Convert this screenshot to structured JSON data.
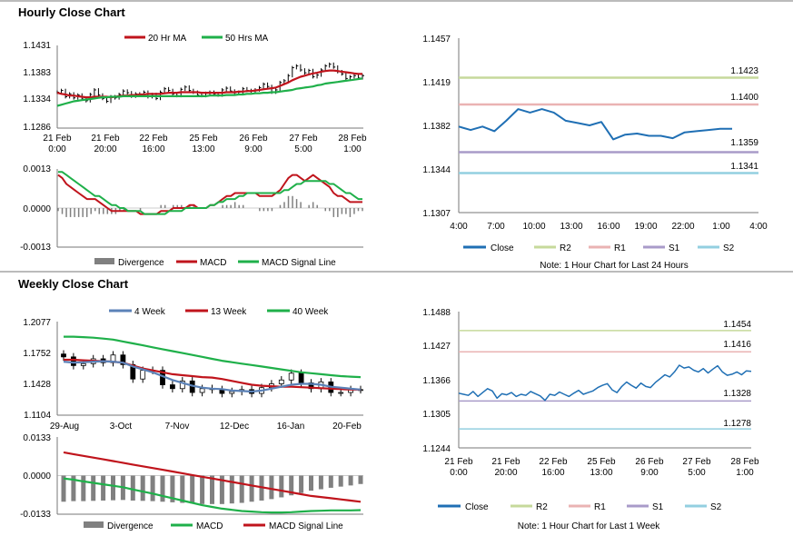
{
  "sections": {
    "hourly_title": "Hourly Close Chart",
    "weekly_title": "Weekly Close Chart"
  },
  "colors": {
    "ma20": "#c0141c",
    "ma50": "#1fb04a",
    "price": "#000000",
    "close": "#1f6fb4",
    "r2": "#c6d99b",
    "r1": "#eab3b3",
    "s1": "#a99bc9",
    "s2": "#93cfe0",
    "hist": "#808080",
    "w4": "#5b82b8"
  },
  "chart_data": [
    {
      "id": "hourly_price",
      "type": "line",
      "title": "Hourly Close Chart",
      "legend": [
        "20 Hr MA",
        "50 Hrs MA"
      ],
      "yticks": [
        "1.1431",
        "1.1383",
        "1.1334",
        "1.1286"
      ],
      "ylim": [
        1.1286,
        1.1431
      ],
      "xticks": [
        [
          "21 Feb",
          "0:00"
        ],
        [
          "21 Feb",
          "20:00"
        ],
        [
          "22 Feb",
          "16:00"
        ],
        [
          "25 Feb",
          "13:00"
        ],
        [
          "26 Feb",
          "9:00"
        ],
        [
          "27 Feb",
          "5:00"
        ],
        [
          "28 Feb",
          "1:00"
        ]
      ],
      "price": [
        1.1349,
        1.1352,
        1.1341,
        1.1346,
        1.1339,
        1.1344,
        1.1337,
        1.1334,
        1.1345,
        1.1353,
        1.1344,
        1.1338,
        1.1333,
        1.1341,
        1.1339,
        1.1345,
        1.1351,
        1.1348,
        1.1342,
        1.1346,
        1.1344,
        1.1349,
        1.1341,
        1.1345,
        1.1338,
        1.1349,
        1.1355,
        1.1352,
        1.1346,
        1.1343,
        1.1354,
        1.1358,
        1.1352,
        1.1349,
        1.1344,
        1.1343,
        1.1347,
        1.1349,
        1.1346,
        1.1344,
        1.1353,
        1.1356,
        1.1351,
        1.1348,
        1.1349,
        1.1355,
        1.1352,
        1.1351,
        1.1353,
        1.1357,
        1.1363,
        1.1359,
        1.1349,
        1.1353,
        1.1366,
        1.1369,
        1.1378,
        1.1392,
        1.1395,
        1.1388,
        1.1383,
        1.1387,
        1.1376,
        1.1379,
        1.1388,
        1.1395,
        1.1398,
        1.1393,
        1.1385,
        1.1381,
        1.1373,
        1.1376,
        1.1378,
        1.1374,
        1.1378
      ],
      "ma20": [
        1.1348,
        1.1346,
        1.1345,
        1.1343,
        1.1343,
        1.1342,
        1.1341,
        1.134,
        1.134,
        1.1341,
        1.1341,
        1.1341,
        1.1341,
        1.134,
        1.1341,
        1.1342,
        1.1343,
        1.1343,
        1.1344,
        1.1344,
        1.1345,
        1.1345,
        1.1346,
        1.1346,
        1.1346,
        1.1346,
        1.1347,
        1.1348,
        1.1348,
        1.1348,
        1.1349,
        1.1349,
        1.1349,
        1.1349,
        1.1349,
        1.1348,
        1.1348,
        1.1348,
        1.1348,
        1.1348,
        1.1348,
        1.1349,
        1.1349,
        1.1349,
        1.135,
        1.135,
        1.1351,
        1.1351,
        1.1352,
        1.1353,
        1.1354,
        1.1355,
        1.1356,
        1.1357,
        1.136,
        1.1363,
        1.1366,
        1.137,
        1.1373,
        1.1376,
        1.1378,
        1.138,
        1.1382,
        1.1383,
        1.1385,
        1.1386,
        1.1387,
        1.1387,
        1.1386,
        1.1385,
        1.1384,
        1.1383,
        1.1382,
        1.1381,
        1.1381
      ],
      "ma50": [
        1.1325,
        1.1327,
        1.1329,
        1.1331,
        1.1333,
        1.1334,
        1.1335,
        1.1336,
        1.1337,
        1.1338,
        1.1339,
        1.134,
        1.134,
        1.1341,
        1.1341,
        1.1341,
        1.1342,
        1.1342,
        1.1342,
        1.1342,
        1.1342,
        1.1342,
        1.1342,
        1.1342,
        1.1342,
        1.1342,
        1.1342,
        1.1342,
        1.1342,
        1.1342,
        1.1342,
        1.1342,
        1.1342,
        1.1342,
        1.1342,
        1.1342,
        1.1342,
        1.1343,
        1.1343,
        1.1343,
        1.1343,
        1.1344,
        1.1344,
        1.1344,
        1.1345,
        1.1345,
        1.1346,
        1.1346,
        1.1347,
        1.1347,
        1.1348,
        1.1348,
        1.1349,
        1.1349,
        1.135,
        1.1351,
        1.1352,
        1.1353,
        1.1355,
        1.1356,
        1.1357,
        1.1358,
        1.1359,
        1.1361,
        1.1362,
        1.1364,
        1.1365,
        1.1366,
        1.1367,
        1.1368,
        1.1369,
        1.137,
        1.1371,
        1.1372,
        1.1373
      ]
    },
    {
      "id": "hourly_macd",
      "type": "line",
      "legend": [
        "Divergence",
        "MACD",
        "MACD Signal Line"
      ],
      "yticks": [
        "0.0013",
        "0.0000",
        "-0.0013"
      ],
      "ylim": [
        -0.0013,
        0.0013
      ],
      "macd": [
        0.0011,
        0.001,
        0.0008,
        0.0007,
        0.0006,
        0.0005,
        0.0004,
        0.0003,
        0.0003,
        0.0003,
        0.0002,
        0.0001,
        0.0,
        -0.0001,
        -0.0001,
        -0.0001,
        -0.0001,
        -0.0001,
        -0.0001,
        -0.0001,
        -0.0002,
        -0.0002,
        -0.0002,
        -0.0002,
        -0.0002,
        -0.0001,
        -0.0001,
        -0.0001,
        0.0,
        0.0,
        0.0,
        0.0,
        0.0001,
        0.0001,
        0.0,
        0.0,
        0.0,
        0.0001,
        0.0001,
        0.0002,
        0.0003,
        0.0004,
        0.0004,
        0.0005,
        0.0005,
        0.0005,
        0.0005,
        0.0005,
        0.0005,
        0.0004,
        0.0004,
        0.0004,
        0.0004,
        0.0005,
        0.0006,
        0.0008,
        0.001,
        0.0011,
        0.0011,
        0.001,
        0.0009,
        0.001,
        0.0011,
        0.001,
        0.0009,
        0.0008,
        0.0007,
        0.0005,
        0.0004,
        0.0004,
        0.0003,
        0.0002,
        0.0002,
        0.0002,
        0.0002
      ],
      "signal": [
        0.0012,
        0.0012,
        0.0011,
        0.001,
        0.0009,
        0.0008,
        0.0007,
        0.0006,
        0.0005,
        0.0004,
        0.0004,
        0.0003,
        0.0002,
        0.0001,
        0.0001,
        0.0,
        0.0,
        -0.0001,
        -0.0001,
        -0.0001,
        -0.0001,
        -0.0002,
        -0.0002,
        -0.0002,
        -0.0002,
        -0.0002,
        -0.0002,
        -0.0001,
        -0.0001,
        -0.0001,
        -0.0001,
        0.0,
        0.0,
        0.0,
        0.0,
        0.0,
        0.0,
        0.0001,
        0.0001,
        0.0002,
        0.0002,
        0.0003,
        0.0003,
        0.0003,
        0.0004,
        0.0004,
        0.0005,
        0.0005,
        0.0005,
        0.0005,
        0.0005,
        0.0005,
        0.0005,
        0.0005,
        0.0005,
        0.0006,
        0.0006,
        0.0007,
        0.0008,
        0.0008,
        0.0009,
        0.0009,
        0.0009,
        0.0009,
        0.0009,
        0.0009,
        0.0008,
        0.0008,
        0.0007,
        0.0006,
        0.0005,
        0.0005,
        0.0004,
        0.0003,
        0.0003
      ]
    },
    {
      "id": "hourly_levels",
      "type": "line",
      "yticks": [
        "1.1457",
        "1.1419",
        "1.1382",
        "1.1344",
        "1.1307"
      ],
      "ylim": [
        1.1307,
        1.1457
      ],
      "xticks": [
        "4:00",
        "7:00",
        "10:00",
        "13:00",
        "16:00",
        "19:00",
        "22:00",
        "1:00",
        "4:00"
      ],
      "close": [
        1.1381,
        1.1378,
        1.1381,
        1.1377,
        1.1386,
        1.1396,
        1.1393,
        1.1396,
        1.1393,
        1.1386,
        1.1384,
        1.1382,
        1.1385,
        1.137,
        1.1374,
        1.1375,
        1.1373,
        1.1373,
        1.1371,
        1.1376,
        1.1377,
        1.1378,
        1.1379,
        1.1379
      ],
      "levels": {
        "r2": "1.1423",
        "r1": "1.1400",
        "s1": "1.1359",
        "s2": "1.1341"
      },
      "level_values": {
        "r2": 1.1423,
        "r1": 1.14,
        "s1": 1.1359,
        "s2": 1.1341
      },
      "legend": [
        "Close",
        "R2",
        "R1",
        "S1",
        "S2"
      ],
      "note": "Note: 1 Hour Chart for Last 24 Hours"
    },
    {
      "id": "weekly_price",
      "type": "line",
      "title": "Weekly Close Chart",
      "legend": [
        "4 Week",
        "13 Week",
        "40 Week"
      ],
      "yticks": [
        "1.2077",
        "1.1752",
        "1.1428",
        "1.1104"
      ],
      "ylim": [
        1.1104,
        1.2077
      ],
      "xticks": [
        "29-Aug",
        "3-Oct",
        "7-Nov",
        "12-Dec",
        "16-Jan",
        "20-Feb"
      ],
      "price": [
        1.171,
        1.162,
        1.164,
        1.169,
        1.165,
        1.173,
        1.163,
        1.148,
        1.157,
        1.157,
        1.142,
        1.138,
        1.146,
        1.134,
        1.138,
        1.137,
        1.133,
        1.135,
        1.137,
        1.133,
        1.139,
        1.143,
        1.147,
        1.154,
        1.144,
        1.138,
        1.145,
        1.134,
        1.134,
        1.137,
        1.137
      ],
      "w4": [
        1.166,
        1.165,
        1.1655,
        1.166,
        1.1665,
        1.166,
        1.165,
        1.161,
        1.158,
        1.155,
        1.151,
        1.147,
        1.144,
        1.141,
        1.139,
        1.138,
        1.1375,
        1.136,
        1.1355,
        1.135,
        1.136,
        1.138,
        1.14,
        1.142,
        1.143,
        1.143,
        1.142,
        1.14,
        1.139,
        1.138,
        1.137
      ],
      "w13": [
        1.168,
        1.168,
        1.1675,
        1.167,
        1.1665,
        1.166,
        1.165,
        1.162,
        1.159,
        1.157,
        1.155,
        1.153,
        1.152,
        1.151,
        1.15,
        1.1495,
        1.148,
        1.146,
        1.144,
        1.142,
        1.141,
        1.1405,
        1.14,
        1.14,
        1.1395,
        1.139,
        1.1385,
        1.138,
        1.1375,
        1.137,
        1.137
      ],
      "w40": [
        1.192,
        1.192,
        1.1915,
        1.191,
        1.19,
        1.189,
        1.187,
        1.185,
        1.183,
        1.181,
        1.179,
        1.177,
        1.175,
        1.173,
        1.171,
        1.169,
        1.167,
        1.1655,
        1.164,
        1.1625,
        1.161,
        1.1595,
        1.158,
        1.1565,
        1.155,
        1.154,
        1.153,
        1.152,
        1.151,
        1.1505,
        1.15
      ]
    },
    {
      "id": "weekly_macd",
      "type": "line",
      "legend": [
        "Divergence",
        "MACD",
        "MACD Signal Line"
      ],
      "yticks": [
        "0.0133",
        "0.0000",
        "-0.0133"
      ],
      "ylim": [
        -0.0133,
        0.0133
      ],
      "macd": [
        -0.001,
        -0.0014,
        -0.002,
        -0.0025,
        -0.003,
        -0.0035,
        -0.004,
        -0.0048,
        -0.0055,
        -0.0062,
        -0.007,
        -0.0078,
        -0.0086,
        -0.0094,
        -0.0102,
        -0.0108,
        -0.0114,
        -0.0118,
        -0.0122,
        -0.0124,
        -0.0126,
        -0.0127,
        -0.0127,
        -0.0126,
        -0.0124,
        -0.0122,
        -0.0121,
        -0.012,
        -0.012,
        -0.012,
        -0.0119
      ],
      "signal": [
        0.008,
        0.0074,
        0.0068,
        0.0062,
        0.0056,
        0.005,
        0.0044,
        0.0038,
        0.0032,
        0.0026,
        0.002,
        0.0014,
        0.0008,
        0.0002,
        -0.0004,
        -0.001,
        -0.0016,
        -0.0022,
        -0.0028,
        -0.0034,
        -0.004,
        -0.0046,
        -0.0052,
        -0.0058,
        -0.0064,
        -0.007,
        -0.0074,
        -0.0078,
        -0.0082,
        -0.0086,
        -0.009
      ],
      "divergence": [
        -0.009,
        -0.0088,
        -0.0088,
        -0.0087,
        -0.0086,
        -0.0085,
        -0.0084,
        -0.0086,
        -0.0087,
        -0.0088,
        -0.009,
        -0.0092,
        -0.0094,
        -0.0096,
        -0.0098,
        -0.0098,
        -0.0098,
        -0.0096,
        -0.0094,
        -0.009,
        -0.0086,
        -0.0081,
        -0.0075,
        -0.0068,
        -0.006,
        -0.0052,
        -0.0047,
        -0.0042,
        -0.0038,
        -0.0034,
        -0.0029
      ]
    },
    {
      "id": "weekly_levels",
      "type": "line",
      "yticks": [
        "1.1488",
        "1.1427",
        "1.1366",
        "1.1305",
        "1.1244"
      ],
      "ylim": [
        1.1244,
        1.1488
      ],
      "xticks": [
        [
          "21 Feb",
          "0:00"
        ],
        [
          "21 Feb",
          "20:00"
        ],
        [
          "22 Feb",
          "16:00"
        ],
        [
          "25 Feb",
          "13:00"
        ],
        [
          "26 Feb",
          "9:00"
        ],
        [
          "27 Feb",
          "5:00"
        ],
        [
          "28 Feb",
          "1:00"
        ]
      ],
      "close": [
        1.1342,
        1.134,
        1.1338,
        1.1345,
        1.1336,
        1.1343,
        1.135,
        1.1346,
        1.1333,
        1.1341,
        1.1339,
        1.1343,
        1.1336,
        1.134,
        1.1338,
        1.1345,
        1.1341,
        1.1337,
        1.1329,
        1.134,
        1.1338,
        1.1344,
        1.134,
        1.1336,
        1.1342,
        1.1347,
        1.134,
        1.1343,
        1.1346,
        1.1352,
        1.1356,
        1.1359,
        1.1348,
        1.1343,
        1.1354,
        1.1362,
        1.1356,
        1.1351,
        1.136,
        1.1354,
        1.1352,
        1.1361,
        1.1368,
        1.1375,
        1.1371,
        1.138,
        1.1392,
        1.1387,
        1.1389,
        1.1383,
        1.138,
        1.1386,
        1.1378,
        1.1385,
        1.1391,
        1.138,
        1.1374,
        1.1376,
        1.138,
        1.1375,
        1.1382,
        1.1381
      ],
      "levels": {
        "r2": "1.1454",
        "r1": "1.1416",
        "s1": "1.1328",
        "s2": "1.1278"
      },
      "level_values": {
        "r2": 1.1454,
        "r1": 1.1416,
        "s1": 1.1328,
        "s2": 1.1278
      },
      "legend": [
        "Close",
        "R2",
        "R1",
        "S1",
        "S2"
      ],
      "note": "Note: 1 Hour Chart for Last 1 Week"
    }
  ]
}
